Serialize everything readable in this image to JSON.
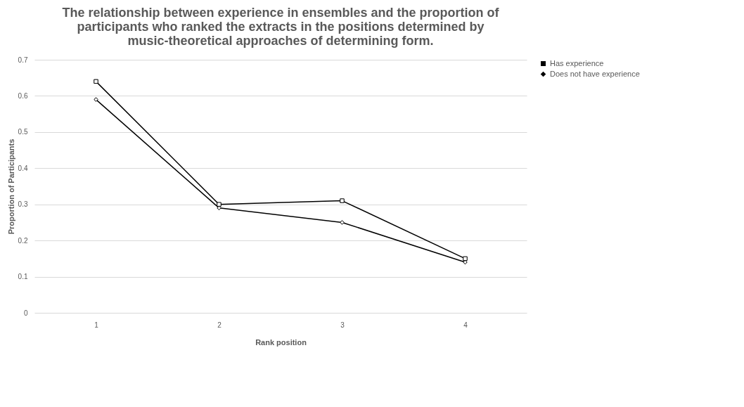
{
  "chart_data": {
    "type": "line",
    "title": "The relationship between experience in ensembles and the proportion of participants who ranked the extracts in the positions determined  by music-theoretical approaches of determining form.",
    "xlabel": "Rank position",
    "ylabel": "Proportion of Participants",
    "categories": [
      "1",
      "2",
      "3",
      "4"
    ],
    "series": [
      {
        "name": "Has experience",
        "color": "#000000",
        "marker": "square",
        "values": [
          0.64,
          0.3,
          0.31,
          0.15
        ]
      },
      {
        "name": "Does not have experience",
        "color": "#000000",
        "marker": "diamond",
        "values": [
          0.59,
          0.29,
          0.25,
          0.14
        ]
      }
    ],
    "ylim": [
      0,
      0.7
    ],
    "yticks": [
      0,
      0.1,
      0.2,
      0.3,
      0.4,
      0.5,
      0.6,
      0.7
    ],
    "grid": "y",
    "legend": "right"
  }
}
